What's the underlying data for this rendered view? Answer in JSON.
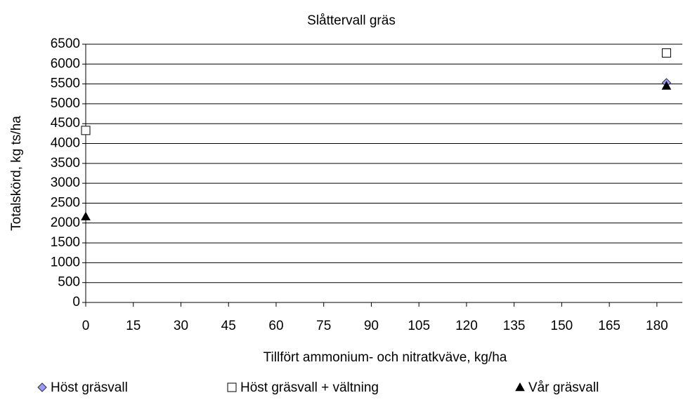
{
  "chart_data": {
    "type": "scatter",
    "title": "Slåttervall gräs",
    "x_label": "Tillfört ammonium- och nitratkväve, kg/ha",
    "y_label": "Totalskörd, kg ts/ha",
    "xlim": [
      0,
      188
    ],
    "xticks": [
      0,
      15,
      30,
      45,
      60,
      75,
      90,
      105,
      120,
      135,
      150,
      165,
      180
    ],
    "ylim": [
      0,
      6500
    ],
    "yticks": [
      0,
      500,
      1000,
      1500,
      2000,
      2500,
      3000,
      3500,
      4000,
      4500,
      5000,
      5500,
      6000,
      6500
    ],
    "grid": true,
    "legend": "bottom",
    "series": [
      {
        "name": "Höst gräsvall",
        "marker": "diamond",
        "color": "#9999ff",
        "x": [
          0,
          183
        ],
        "values": [
          4330,
          5530
        ]
      },
      {
        "name": "Höst gräsvall + vältning",
        "marker": "square",
        "color": "#ffffff",
        "x": [
          0,
          183
        ],
        "values": [
          4330,
          6280
        ]
      },
      {
        "name": "Vår gräsvall",
        "marker": "triangle",
        "color": "#000000",
        "x": [
          0,
          183
        ],
        "values": [
          2160,
          5450
        ]
      }
    ]
  }
}
